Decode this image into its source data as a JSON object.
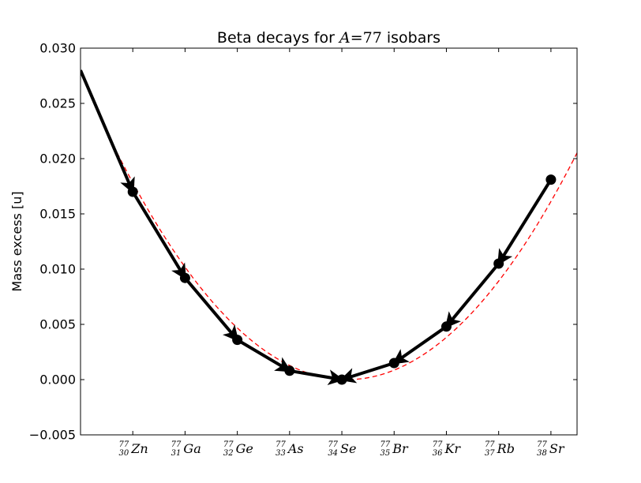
{
  "chart_data": {
    "type": "line",
    "title": {
      "prefix": "Beta decays for ",
      "var": "A",
      "eq": "=",
      "num": "77",
      "suffix": " isobars"
    },
    "ylabel": "Mass excess [u]",
    "xlabel": "",
    "xlim": [
      29,
      38.5
    ],
    "ylim": [
      -0.005,
      0.03
    ],
    "yticks": [
      -0.005,
      0.0,
      0.005,
      0.01,
      0.015,
      0.02,
      0.025,
      0.03
    ],
    "ytick_labels": [
      "−0.005",
      "0.000",
      "0.005",
      "0.010",
      "0.015",
      "0.020",
      "0.025",
      "0.030"
    ],
    "grid": false,
    "isotopes": [
      {
        "z": 30,
        "a": "77",
        "zlabel": "30",
        "symbol": "Zn",
        "mass_excess": 0.017
      },
      {
        "z": 31,
        "a": "77",
        "zlabel": "31",
        "symbol": "Ga",
        "mass_excess": 0.0092
      },
      {
        "z": 32,
        "a": "77",
        "zlabel": "32",
        "symbol": "Ge",
        "mass_excess": 0.0036
      },
      {
        "z": 33,
        "a": "77",
        "zlabel": "33",
        "symbol": "As",
        "mass_excess": 0.0008
      },
      {
        "z": 34,
        "a": "77",
        "zlabel": "34",
        "symbol": "Se",
        "mass_excess": 0.0
      },
      {
        "z": 35,
        "a": "77",
        "zlabel": "35",
        "symbol": "Br",
        "mass_excess": 0.0015
      },
      {
        "z": 36,
        "a": "77",
        "zlabel": "36",
        "symbol": "Kr",
        "mass_excess": 0.0048
      },
      {
        "z": 37,
        "a": "77",
        "zlabel": "37",
        "symbol": "Rb",
        "mass_excess": 0.0105
      },
      {
        "z": 38,
        "a": "77",
        "zlabel": "38",
        "symbol": "Sr",
        "mass_excess": 0.0181
      }
    ],
    "incoming_arrow": {
      "from": [
        29,
        0.028
      ],
      "to_z": 30
    },
    "arrows_description": "beta decay arrows point from higher mass excess toward the minimum at Z=34",
    "fit_curve": {
      "type": "parabola",
      "vertex_z": 34.1,
      "curvature": 0.00106,
      "z_range": [
        29.5,
        38.5
      ],
      "color": "#ff0000",
      "style": "dashed"
    },
    "colors": {
      "data": "#000000",
      "fit": "#ff0000",
      "background": "#ffffff"
    }
  }
}
